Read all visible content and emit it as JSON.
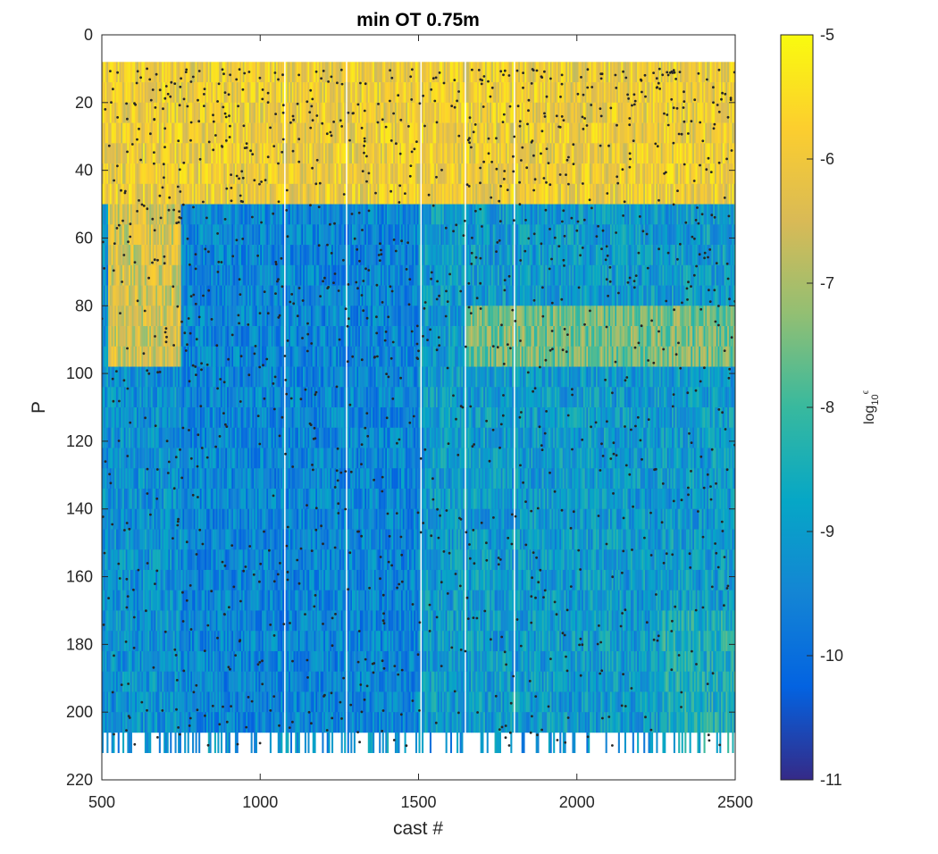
{
  "chart_data": {
    "type": "heatmap",
    "title": "min OT 0.75m",
    "xlabel": "cast #",
    "ylabel": "P",
    "xlim": [
      500,
      2500
    ],
    "ylim": [
      0,
      220
    ],
    "y_reversed": true,
    "xticks": [
      500,
      1000,
      1500,
      2000,
      2500
    ],
    "yticks": [
      0,
      20,
      40,
      60,
      80,
      100,
      120,
      140,
      160,
      180,
      200,
      220
    ],
    "colorbar": {
      "label_base": "log",
      "label_sub": "10",
      "label_sup": "ϵ",
      "clim": [
        -11,
        -5
      ],
      "ticks": [
        -5,
        -6,
        -7,
        -8,
        -9,
        -10,
        -11
      ],
      "colormap": "parula",
      "colors": [
        "#352a87",
        "#0363e1",
        "#1485d4",
        "#06a7c6",
        "#38b99e",
        "#92bf73",
        "#d9ba56",
        "#fcce2e",
        "#f9fb0e"
      ]
    },
    "data_extent": {
      "bottom_pressure": 205,
      "top_pressure": 8,
      "gaps_cast": [
        1075,
        1270,
        1505,
        1645,
        1800
      ],
      "regions": [
        {
          "cast": [
            500,
            2500
          ],
          "p": [
            8,
            45
          ],
          "log10_eps": -6.0
        },
        {
          "cast": [
            520,
            750
          ],
          "p": [
            45,
            95
          ],
          "log10_eps": -6.5
        },
        {
          "cast": [
            750,
            1500
          ],
          "p": [
            50,
            205
          ],
          "log10_eps": -9.5
        },
        {
          "cast": [
            1500,
            2500
          ],
          "p": [
            50,
            205
          ],
          "log10_eps": -9.0
        },
        {
          "cast": [
            1650,
            2500
          ],
          "p": [
            75,
            95
          ],
          "log10_eps": -7.5
        },
        {
          "cast": [
            2270,
            2500
          ],
          "p": [
            170,
            220
          ],
          "log10_eps": -8.5
        }
      ]
    },
    "marker_color": "#262626"
  }
}
